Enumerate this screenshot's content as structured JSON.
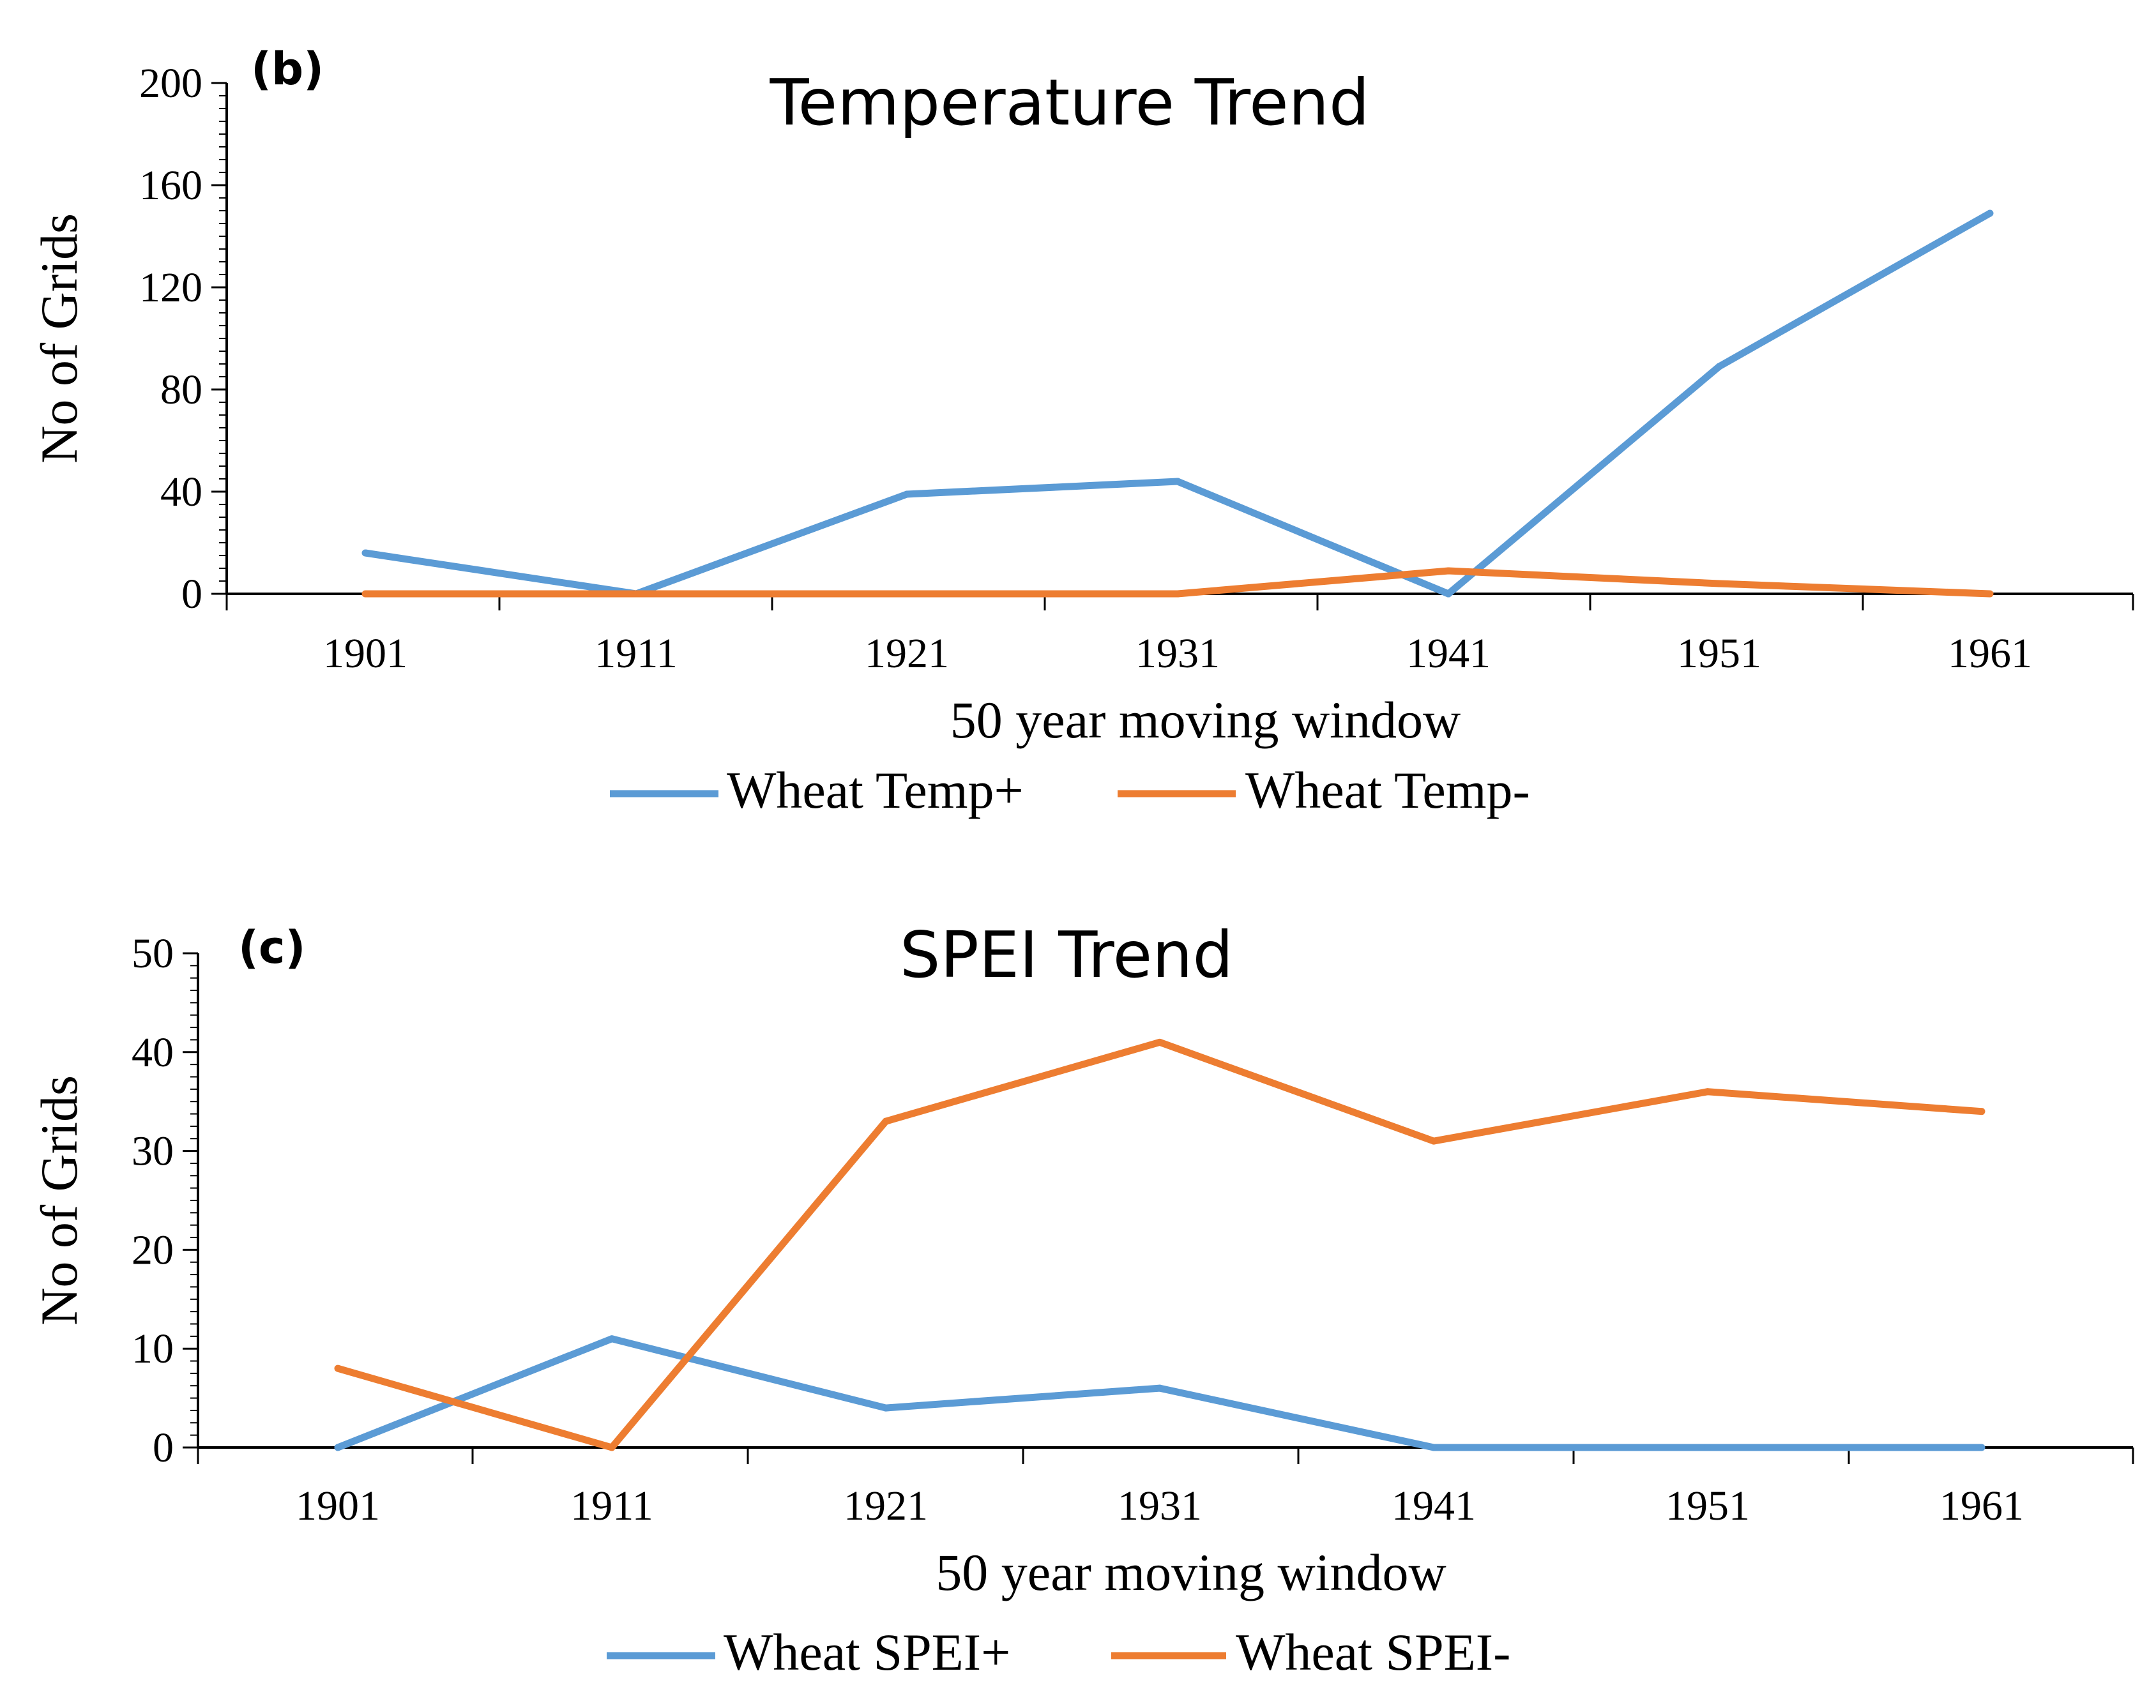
{
  "chart_data": [
    {
      "type": "line",
      "panel_label": "(b)",
      "title": "Temperature Trend",
      "xlabel": "50 year moving window",
      "ylabel": "No of Grids",
      "categories": [
        "1901",
        "1911",
        "1921",
        "1931",
        "1941",
        "1951",
        "1961"
      ],
      "ylim": [
        0,
        200
      ],
      "yticks": [
        0,
        40,
        80,
        120,
        160,
        200
      ],
      "series": [
        {
          "name": "Wheat Temp+",
          "color": "#5b9bd5",
          "values": [
            16,
            0,
            39,
            44,
            0,
            89,
            149
          ]
        },
        {
          "name": "Wheat Temp-",
          "color": "#ed7d31",
          "values": [
            0,
            0,
            0,
            0,
            9,
            4,
            0
          ]
        }
      ],
      "legend_position": "bottom"
    },
    {
      "type": "line",
      "panel_label": "(c)",
      "title": "SPEI Trend",
      "xlabel": "50 year moving window",
      "ylabel": "No of Grids",
      "categories": [
        "1901",
        "1911",
        "1921",
        "1931",
        "1941",
        "1951",
        "1961"
      ],
      "ylim": [
        0,
        50
      ],
      "yticks": [
        0,
        10,
        20,
        30,
        40,
        50
      ],
      "series": [
        {
          "name": "Wheat SPEI+",
          "color": "#5b9bd5",
          "values": [
            0,
            11,
            4,
            6,
            0,
            0,
            0
          ]
        },
        {
          "name": "Wheat SPEI-",
          "color": "#ed7d31",
          "values": [
            8,
            0,
            33,
            41,
            31,
            36,
            34
          ]
        }
      ],
      "legend_position": "bottom"
    }
  ]
}
